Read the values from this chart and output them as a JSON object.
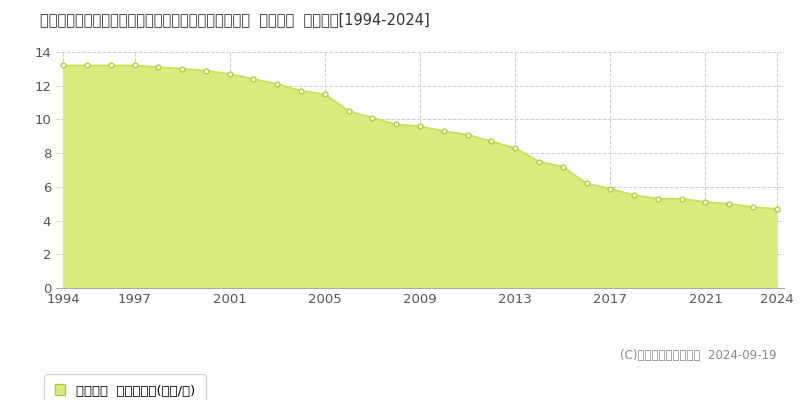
{
  "title": "和歌山県東牟婁郡太地町大字森浦字汐入５５１番３９  公示地価  地価推移[1994-2024]",
  "years": [
    1994,
    1995,
    1996,
    1997,
    1998,
    1999,
    2000,
    2001,
    2002,
    2003,
    2004,
    2005,
    2006,
    2007,
    2008,
    2009,
    2010,
    2011,
    2012,
    2013,
    2014,
    2015,
    2016,
    2017,
    2018,
    2019,
    2020,
    2021,
    2022,
    2023,
    2024
  ],
  "values": [
    13.2,
    13.2,
    13.2,
    13.2,
    13.1,
    13.0,
    12.9,
    12.7,
    12.4,
    12.1,
    11.7,
    11.5,
    10.5,
    10.1,
    9.7,
    9.6,
    9.3,
    9.1,
    8.7,
    8.3,
    7.5,
    7.2,
    6.2,
    5.9,
    5.5,
    5.3,
    5.3,
    5.1,
    5.0,
    4.8,
    4.7
  ],
  "line_color": "#c8e053",
  "fill_color": "#d8ec80",
  "marker_color": "#ffffff",
  "marker_edge_color": "#b0cc40",
  "ylim": [
    0,
    14
  ],
  "yticks": [
    0,
    2,
    4,
    6,
    8,
    10,
    12,
    14
  ],
  "xticks": [
    1994,
    1997,
    2001,
    2005,
    2009,
    2013,
    2017,
    2021,
    2024
  ],
  "grid_color": "#cccccc",
  "bg_color": "#ffffff",
  "legend_label": "公示地価  平均坪単価(万円/坪)",
  "copyright": "(C)土地価格ドットコム  2024-09-19",
  "title_fontsize": 10.5,
  "axis_fontsize": 9.5,
  "legend_fontsize": 9.5,
  "copyright_fontsize": 8.5
}
